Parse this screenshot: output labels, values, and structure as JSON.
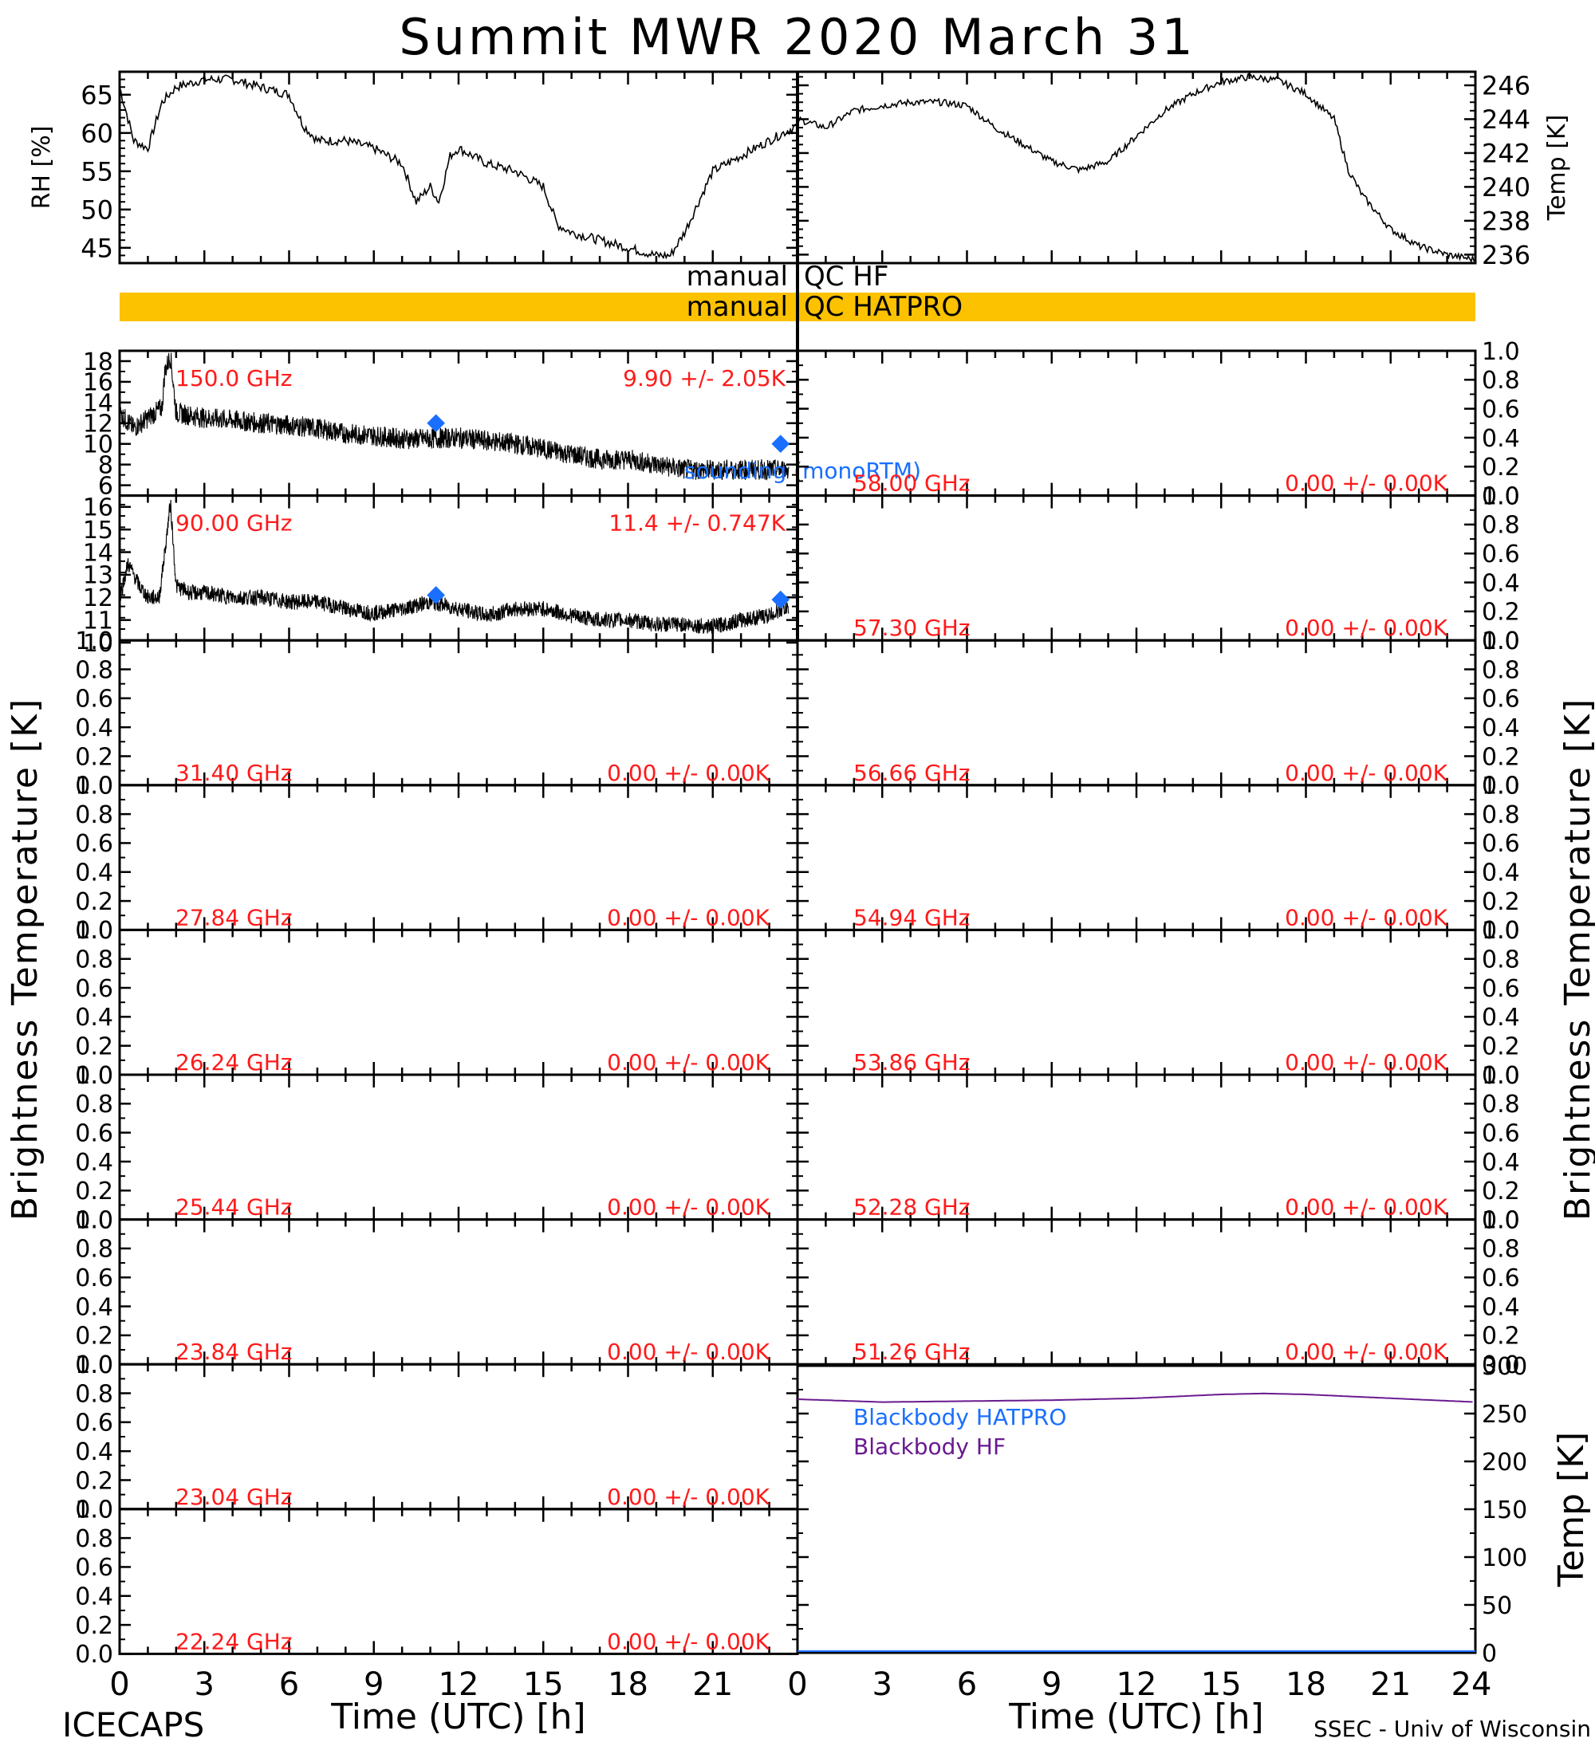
{
  "title": "Summit MWR 2020 March 31",
  "footer": {
    "left": "ICECAPS",
    "right": "SSEC - Univ of Wisconsin",
    "xlabel": "Time (UTC) [h]"
  },
  "axes": {
    "left_big_ylabel": "Brightness Temperature [K]",
    "right_big_ylabel": "Brightness Temperature [K]",
    "x_ticks": [
      "0",
      "3",
      "6",
      "9",
      "12",
      "15",
      "18",
      "21"
    ],
    "x_ticks_right": [
      "0",
      "3",
      "6",
      "9",
      "12",
      "15",
      "18",
      "21",
      "24"
    ]
  },
  "qc": {
    "hf_label_left": "manual",
    "hf_label_right": "QC HF",
    "hatpro_label_left": "manual",
    "hatpro_label_right": "QC HATPRO",
    "hatpro_color": "#fcc200"
  },
  "colors": {
    "red_text": "#ff1a1a",
    "blue": "#1a6fff",
    "purple": "#6a1a8f"
  },
  "chart_data": [
    {
      "id": "rh",
      "type": "line",
      "ylabel": "RH [%]",
      "ylim": [
        43,
        68
      ],
      "yticks": [
        "45",
        "50",
        "55",
        "60",
        "65"
      ],
      "x": [
        0,
        0.5,
        1,
        1.5,
        2,
        3,
        4,
        5,
        6,
        6.5,
        7,
        8,
        9,
        10,
        10.5,
        11,
        11.3,
        11.7,
        12,
        13,
        14,
        15,
        15.5,
        16,
        17,
        18,
        19,
        19.5,
        20,
        21,
        22,
        23,
        24
      ],
      "values": [
        66,
        59,
        58,
        64,
        66,
        67,
        67,
        66,
        65,
        61,
        59,
        59,
        58,
        56,
        51,
        53,
        51,
        57,
        58,
        56,
        55,
        53,
        48,
        47,
        46,
        45,
        44,
        44,
        47,
        55,
        57,
        59,
        61
      ]
    },
    {
      "id": "temp",
      "type": "line",
      "ylabel": "Temp [K]",
      "ylim": [
        235.5,
        246.8
      ],
      "yticks": [
        "236",
        "238",
        "240",
        "242",
        "244",
        "246"
      ],
      "x": [
        0,
        1,
        2,
        3,
        4,
        5,
        6,
        7,
        8,
        9,
        10,
        11,
        12,
        13,
        14,
        15,
        16,
        17,
        18,
        19,
        19.5,
        20,
        21,
        22,
        23,
        24
      ],
      "values": [
        244,
        243.5,
        244.5,
        244.8,
        245,
        245,
        244.8,
        243.5,
        242.5,
        241.5,
        241,
        241.5,
        243,
        244.5,
        245.5,
        246.2,
        246.5,
        246.3,
        245.5,
        244,
        241,
        239.5,
        237.5,
        236.5,
        236,
        235.7
      ]
    },
    {
      "id": "ch150",
      "type": "line",
      "channel": "150.0 GHz",
      "stat": "9.90 +/-  2.05K",
      "ylim": [
        5,
        19
      ],
      "yticks": [
        "6",
        "8",
        "10",
        "12",
        "14",
        "16",
        "18"
      ],
      "x": [
        0,
        0.5,
        1,
        1.5,
        1.6,
        1.8,
        2,
        3,
        4,
        5,
        6,
        7,
        8,
        9,
        10,
        11,
        12,
        13,
        14,
        15,
        16,
        17,
        18,
        19,
        20,
        21,
        22,
        23,
        23.5
      ],
      "values": [
        13,
        11.5,
        12.5,
        13.5,
        17,
        18.5,
        13,
        12.5,
        12.3,
        12,
        11.8,
        11.5,
        11,
        10.8,
        10.5,
        10.5,
        10.6,
        10.3,
        10,
        9.5,
        9,
        8.5,
        8.5,
        8,
        7.5,
        7.5,
        7.5,
        7.5,
        7.5
      ],
      "sounding": {
        "x": [
          11.2,
          23.4
        ],
        "values": [
          12,
          10
        ]
      }
    },
    {
      "id": "ch90",
      "type": "line",
      "channel": "90.00 GHz",
      "stat": "11.4 +/- 0.747K",
      "ylim": [
        10.1,
        16.5
      ],
      "yticks": [
        "10",
        "11",
        "12",
        "13",
        "14",
        "15",
        "16"
      ],
      "x": [
        0,
        0.3,
        0.7,
        1,
        1.4,
        1.6,
        1.8,
        2,
        2.5,
        3,
        4,
        5,
        6,
        7,
        8,
        9,
        10,
        11,
        12,
        13,
        14,
        15,
        16,
        17,
        18,
        19,
        20,
        21,
        22,
        23,
        23.5
      ],
      "values": [
        12,
        13.5,
        12.5,
        12,
        12,
        14,
        16.2,
        12.5,
        12.2,
        12.2,
        12,
        12,
        11.8,
        11.8,
        11.5,
        11.3,
        11.5,
        11.8,
        11.5,
        11.2,
        11.5,
        11.5,
        11.2,
        11,
        11,
        10.8,
        10.8,
        10.7,
        11,
        11.2,
        11.5
      ],
      "sounding": {
        "x": [
          11.2,
          23.4
        ],
        "values": [
          12.1,
          11.9
        ]
      }
    }
  ],
  "left_panels": [
    {
      "channel": "150.0 GHz",
      "stat": "9.90 +/-  2.05K"
    },
    {
      "channel": "90.00 GHz",
      "stat": "11.4 +/- 0.747K"
    },
    {
      "channel": "31.40 GHz",
      "stat": "0.00 +/-  0.00K"
    },
    {
      "channel": "27.84 GHz",
      "stat": "0.00 +/-  0.00K"
    },
    {
      "channel": "26.24 GHz",
      "stat": "0.00 +/-  0.00K"
    },
    {
      "channel": "25.44 GHz",
      "stat": "0.00 +/-  0.00K"
    },
    {
      "channel": "23.84 GHz",
      "stat": "0.00 +/-  0.00K"
    },
    {
      "channel": "23.04 GHz",
      "stat": "0.00 +/-  0.00K"
    },
    {
      "channel": "22.24 GHz",
      "stat": "0.00 +/-  0.00K"
    }
  ],
  "right_panels": [
    {
      "channel": "58.00 GHz",
      "stat": "0.00 +/-  0.00K"
    },
    {
      "channel": "57.30 GHz",
      "stat": "0.00 +/-  0.00K"
    },
    {
      "channel": "56.66 GHz",
      "stat": "0.00 +/-  0.00K"
    },
    {
      "channel": "54.94 GHz",
      "stat": "0.00 +/-  0.00K"
    },
    {
      "channel": "53.86 GHz",
      "stat": "0.00 +/-  0.00K"
    },
    {
      "channel": "52.28 GHz",
      "stat": "0.00 +/-  0.00K"
    },
    {
      "channel": "51.26 GHz",
      "stat": "0.00 +/-  0.00K"
    }
  ],
  "empty_yticks": [
    "0.0",
    "0.2",
    "0.4",
    "0.6",
    "0.8",
    "1.0"
  ],
  "sounding_label": "sounding (monoRTM)",
  "blackbody": {
    "ylabel": "Temp [K]",
    "ylim": [
      0,
      300
    ],
    "yticks": [
      "0",
      "50",
      "100",
      "150",
      "200",
      "250",
      "300"
    ],
    "legend_hatpro": "Blackbody HATPRO",
    "legend_hf": "Blackbody HF",
    "hf_x": [
      0,
      3,
      6,
      9,
      12,
      15,
      16.5,
      18,
      21,
      24
    ],
    "hf_values": [
      265,
      262,
      263,
      264,
      266,
      270,
      271,
      270,
      266,
      262
    ],
    "hatpro_x": [
      0,
      24
    ],
    "hatpro_values": [
      0,
      0
    ]
  }
}
